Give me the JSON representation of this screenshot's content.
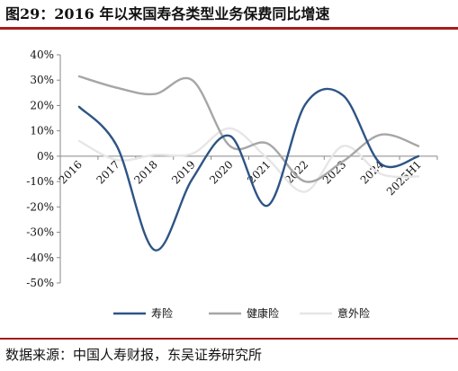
{
  "header": {
    "title": "图29：2016 年以来国寿各类型业务保费同比增速"
  },
  "footer": {
    "source": "数据来源：中国人寿财报，东吴证券研究所"
  },
  "chart_data": {
    "type": "line",
    "smooth": true,
    "categories": [
      "2016",
      "2017",
      "2018",
      "2019",
      "2020",
      "2021",
      "2022",
      "2023",
      "2024",
      "2025H1"
    ],
    "ylim": [
      -50,
      40
    ],
    "yticks": [
      "40%",
      "30%",
      "20%",
      "10%",
      "0%",
      "-10%",
      "-20%",
      "-30%",
      "-40%",
      "-50%"
    ],
    "ytick_values": [
      40,
      30,
      20,
      10,
      0,
      -10,
      -20,
      -30,
      -40,
      -50
    ],
    "legend_position": "bottom",
    "series": [
      {
        "name": "寿险",
        "color": "#2e5485",
        "values": [
          19.5,
          4,
          -37,
          -9,
          8,
          -19.5,
          20.5,
          24,
          -3,
          0
        ]
      },
      {
        "name": "健康险",
        "color": "#a6a6a6",
        "values": [
          31.5,
          27,
          24.5,
          30,
          4,
          5,
          -10,
          -2,
          8.5,
          4
        ]
      },
      {
        "name": "意外险",
        "color": "#e6e6e6",
        "values": [
          6,
          -1.5,
          0.5,
          1,
          11,
          -1,
          -14,
          4,
          -7,
          -8
        ]
      }
    ]
  }
}
